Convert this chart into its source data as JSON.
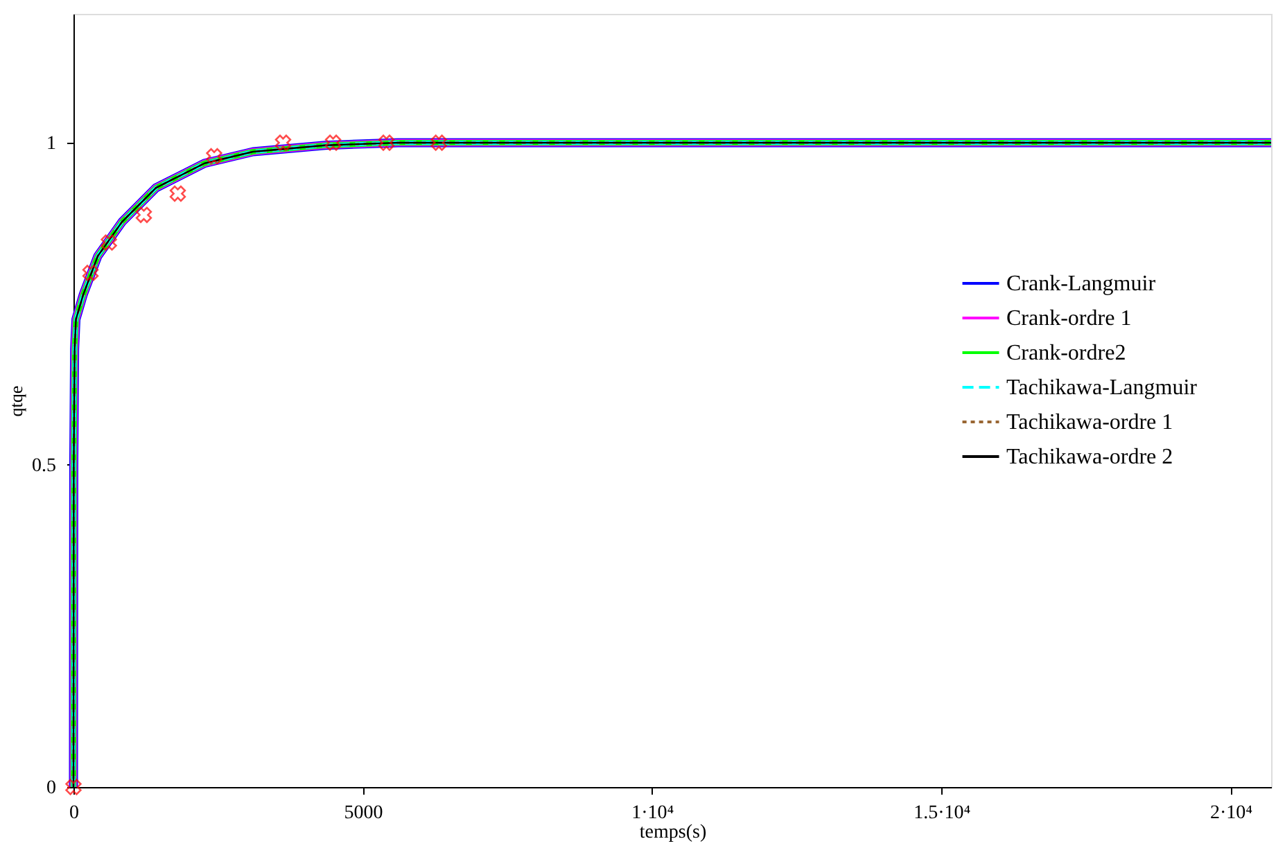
{
  "chart_data": {
    "type": "line",
    "xlabel": "temps(s)",
    "ylabel": "qtqe",
    "xlim": [
      0,
      20700
    ],
    "ylim": [
      0,
      1.2
    ],
    "xticks": [
      0,
      5000,
      {
        "value": 10000,
        "label": "1·10⁴"
      },
      {
        "value": 15000,
        "label": "1.5·10⁴"
      },
      {
        "value": 20000,
        "label": "2·10⁴"
      }
    ],
    "yticks": [
      0,
      0.5,
      1
    ],
    "grid": false,
    "legend": "right",
    "series": [
      {
        "name": "Crank-Langmuir",
        "color": "#0000ff",
        "type": "line",
        "line_style": "solid",
        "x": [
          0,
          5,
          20,
          43,
          168,
          420,
          838,
          1426,
          2264,
          3102,
          4352,
          5610,
          20700
        ],
        "values": [
          0,
          0.5,
          0.68,
          0.726,
          0.764,
          0.824,
          0.877,
          0.93,
          0.968,
          0.986,
          0.996,
          1.0,
          1.0
        ]
      },
      {
        "name": "Crank-ordre 1",
        "color": "#ff00ff",
        "type": "line",
        "line_style": "solid",
        "x": [
          0,
          5,
          20,
          43,
          168,
          420,
          838,
          1426,
          2264,
          3102,
          4352,
          5610,
          20700
        ],
        "values": [
          0,
          0.5,
          0.68,
          0.726,
          0.764,
          0.824,
          0.877,
          0.93,
          0.968,
          0.986,
          0.996,
          1.0,
          1.0
        ]
      },
      {
        "name": "Crank-ordre2",
        "color": "#00ff00",
        "type": "line",
        "line_style": "solid",
        "x": [
          0,
          5,
          20,
          43,
          168,
          420,
          838,
          1426,
          2264,
          3102,
          4352,
          5610,
          20700
        ],
        "values": [
          0,
          0.5,
          0.68,
          0.726,
          0.764,
          0.824,
          0.877,
          0.93,
          0.968,
          0.986,
          0.996,
          1.0,
          1.0
        ]
      },
      {
        "name": "Tachikawa-Langmuir",
        "color": "#00ffff",
        "type": "line",
        "line_style": "dashed",
        "x": [
          0,
          5,
          20,
          43,
          168,
          420,
          838,
          1426,
          2264,
          3102,
          4352,
          5610,
          20700
        ],
        "values": [
          0,
          0.5,
          0.68,
          0.726,
          0.764,
          0.824,
          0.877,
          0.93,
          0.968,
          0.986,
          0.996,
          1.0,
          1.0
        ]
      },
      {
        "name": "Tachikawa-ordre 1",
        "color": "#996633",
        "type": "line",
        "line_style": "dotted",
        "x": [
          0,
          5,
          20,
          43,
          168,
          420,
          838,
          1426,
          2264,
          3102,
          4352,
          5610,
          20700
        ],
        "values": [
          0,
          0.5,
          0.68,
          0.726,
          0.764,
          0.824,
          0.877,
          0.93,
          0.968,
          0.986,
          0.996,
          1.0,
          1.0
        ]
      },
      {
        "name": "Tachikawa-ordre 2",
        "color": "#000000",
        "type": "line",
        "line_style": "solid",
        "x": [
          0,
          5,
          20,
          43,
          168,
          420,
          838,
          1426,
          2264,
          3102,
          4352,
          5610,
          20700
        ],
        "values": [
          0,
          0.5,
          0.68,
          0.726,
          0.764,
          0.824,
          0.877,
          0.93,
          0.968,
          0.986,
          0.996,
          1.0,
          1.0
        ]
      },
      {
        "color": "#ff0000",
        "type": "scatter",
        "marker": "cross",
        "x": [
          0,
          294,
          612,
          1216,
          1803,
          2432,
          3623,
          4487,
          5409,
          6315
        ],
        "values": [
          0,
          0.798,
          0.845,
          0.888,
          0.921,
          0.979,
          1.0,
          1.0,
          1.0,
          1.0
        ]
      }
    ]
  }
}
